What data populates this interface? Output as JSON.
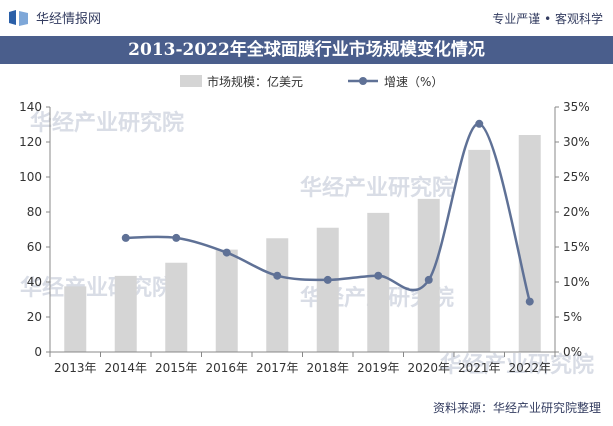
{
  "header": {
    "brand": "华经情报网",
    "slogan": "专业严谨 • 客观科学"
  },
  "title": "2013-2022年全球面膜行业市场规模变化情况",
  "source": "资料来源：华经产业研究院整理",
  "watermark": "华经产业研究院",
  "colors": {
    "bar": "#d5d5d5",
    "line": "#5f7196",
    "title_bg": "#4a5e8c"
  },
  "chart_data": {
    "type": "bar",
    "categories": [
      "2013年",
      "2014年",
      "2015年",
      "2016年",
      "2017年",
      "2018年",
      "2019年",
      "2020年",
      "2021年",
      "2022年"
    ],
    "series": [
      {
        "name": "市场规模：亿美元",
        "type": "bar",
        "axis": "left",
        "values": [
          37.5,
          43.5,
          51,
          58.5,
          65,
          71,
          79.5,
          87.5,
          115.5,
          124
        ]
      },
      {
        "name": "增速（%）",
        "type": "line",
        "axis": "right",
        "values": [
          null,
          16.3,
          16.3,
          14.2,
          10.9,
          10.3,
          10.9,
          10.3,
          32.6,
          7.2
        ]
      }
    ],
    "y_left": {
      "min": 0,
      "max": 140,
      "ticks": [
        "0",
        "20",
        "40",
        "60",
        "80",
        "100",
        "120",
        "140"
      ]
    },
    "y_right": {
      "min": 0,
      "max": 35,
      "ticks": [
        "0%",
        "5%",
        "10%",
        "15%",
        "20%",
        "25%",
        "30%",
        "35%"
      ]
    },
    "legend_position": "top-center",
    "grid": false
  }
}
